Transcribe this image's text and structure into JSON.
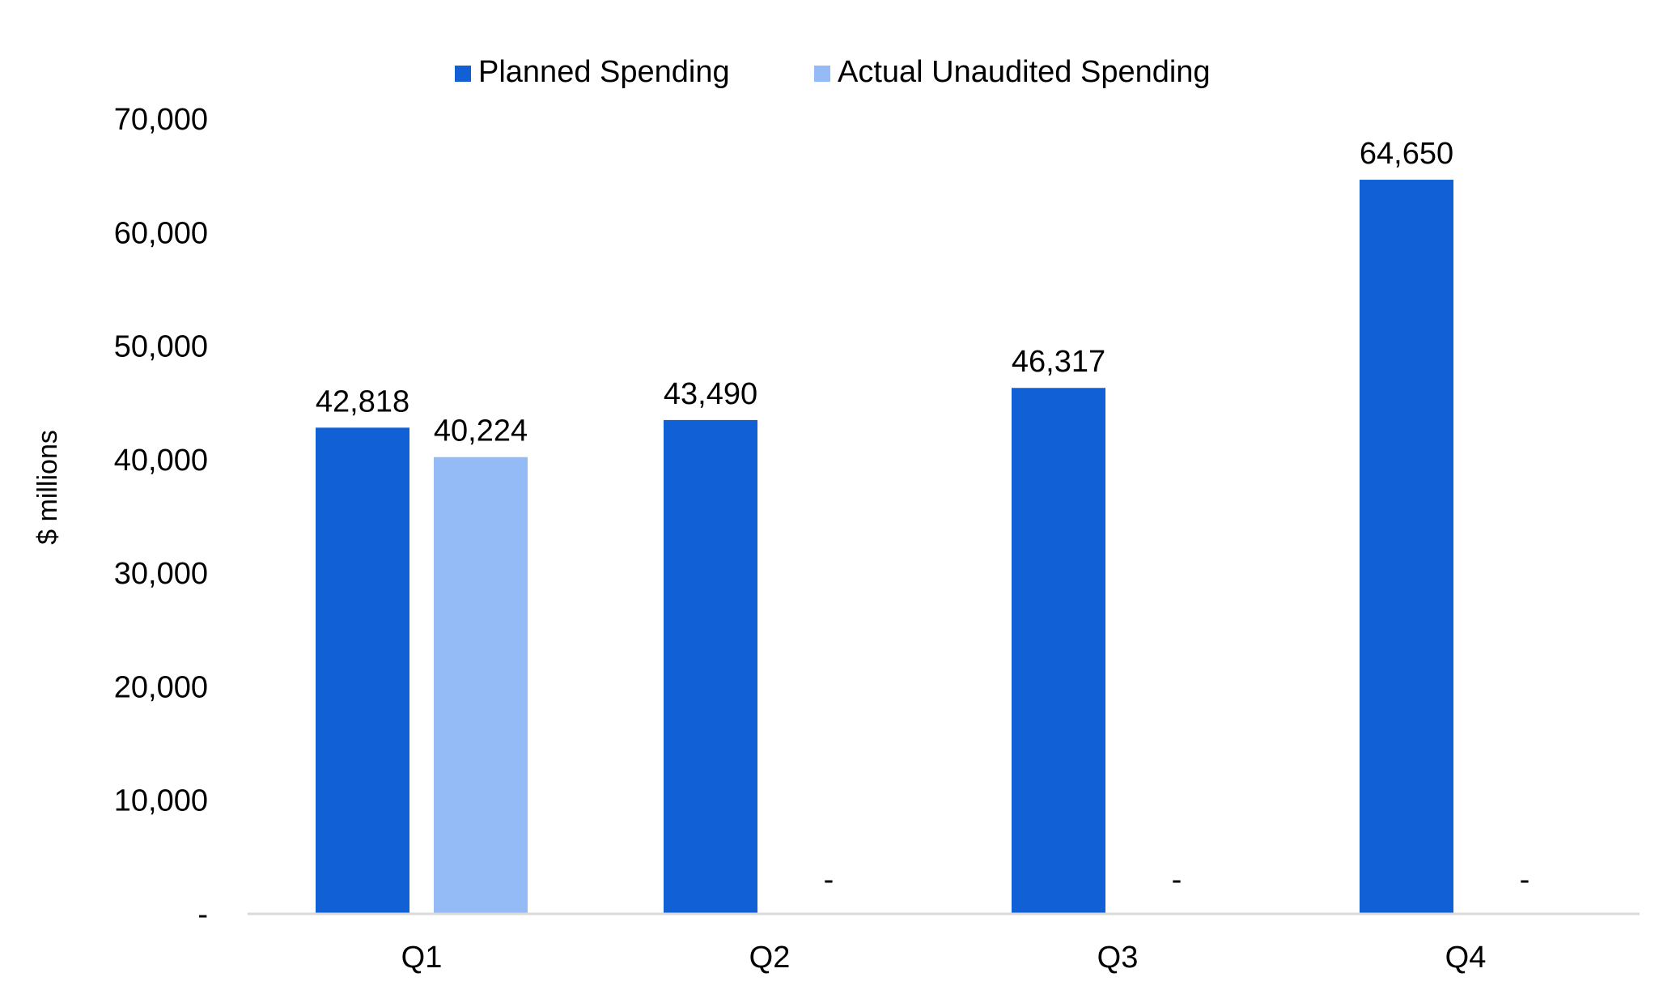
{
  "chart_data": {
    "type": "bar",
    "categories": [
      "Q1",
      "Q2",
      "Q3",
      "Q4"
    ],
    "series": [
      {
        "name": "Planned Spending",
        "color": "#1160d6",
        "values": [
          42818,
          43490,
          46317,
          64650
        ],
        "labels": [
          "42,818",
          "43,490",
          "46,317",
          "64,650"
        ]
      },
      {
        "name": "Actual Unaudited Spending",
        "color": "#94bbf5",
        "values": [
          40224,
          0,
          0,
          0
        ],
        "labels": [
          "40,224",
          "-",
          "-",
          "-"
        ]
      }
    ],
    "ylabel": "$ millions",
    "ylim": [
      0,
      70000
    ],
    "yticks": [
      0,
      10000,
      20000,
      30000,
      40000,
      50000,
      60000,
      70000
    ],
    "ytick_labels": [
      "-",
      "10,000",
      "20,000",
      "30,000",
      "40,000",
      "50,000",
      "60,000",
      "70,000"
    ],
    "grid": false,
    "legend_position": "top-center",
    "axis_color": "#d9d9d9"
  }
}
